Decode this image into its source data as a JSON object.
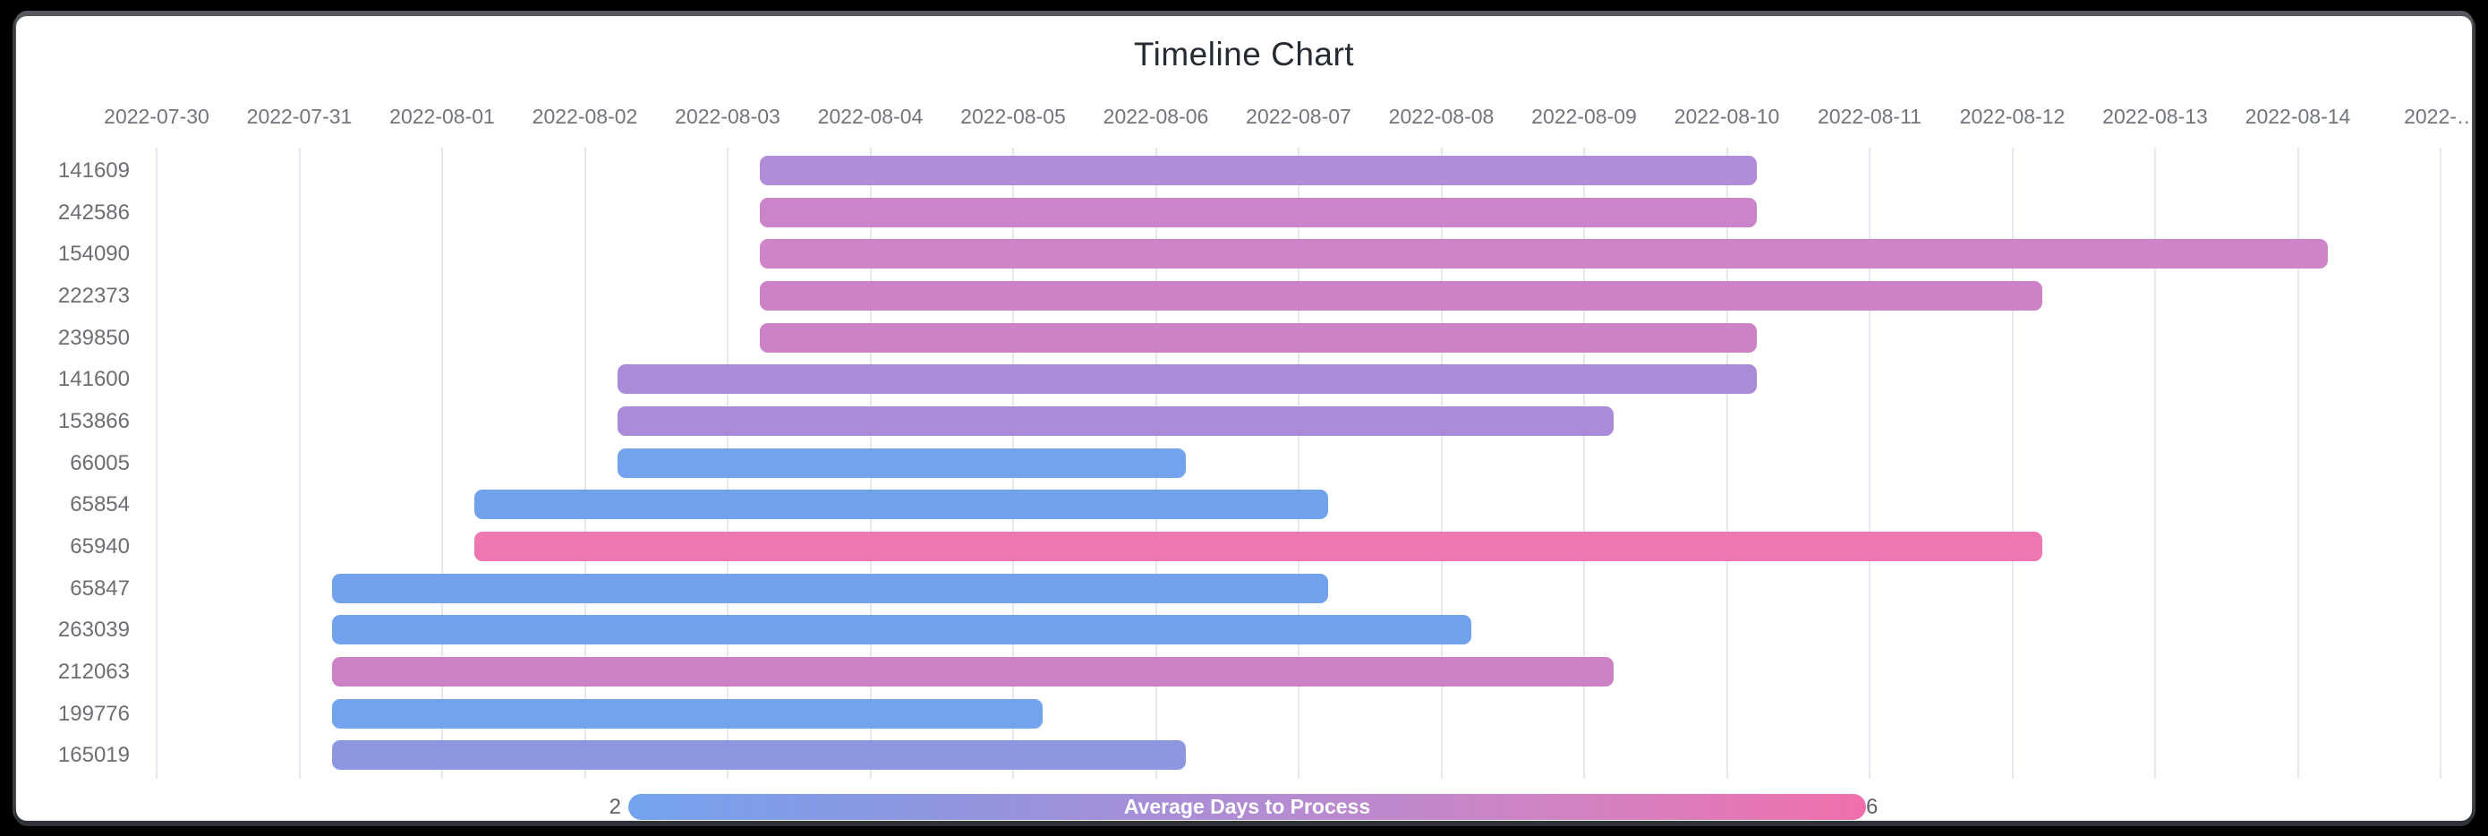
{
  "chart_data": {
    "type": "bar",
    "subtype": "timeline-gantt",
    "title": "Timeline Chart",
    "x_axis": {
      "start_date": "2022-07-30",
      "tick_labels": [
        "2022-07-30",
        "2022-07-31",
        "2022-08-01",
        "2022-08-02",
        "2022-08-03",
        "2022-08-04",
        "2022-08-05",
        "2022-08-06",
        "2022-08-07",
        "2022-08-08",
        "2022-08-09",
        "2022-08-10",
        "2022-08-11",
        "2022-08-12",
        "2022-08-13",
        "2022-08-14",
        "2022-…"
      ],
      "grid": true,
      "labels_position": "top"
    },
    "y_axis": {
      "labels": [
        "141609",
        "242586",
        "154090",
        "222373",
        "239850",
        "141600",
        "153866",
        "66005",
        "65854",
        "65940",
        "65847",
        "263039",
        "212063",
        "199776",
        "165019"
      ]
    },
    "rows": [
      {
        "id": "141609",
        "start": "2022-08-03",
        "end": "2022-08-10",
        "duration_days": 7,
        "avg_days_to_process": 4,
        "color": "#af8dd8"
      },
      {
        "id": "242586",
        "start": "2022-08-03",
        "end": "2022-08-10",
        "duration_days": 7,
        "avg_days_to_process": 5,
        "color": "#cb83c9"
      },
      {
        "id": "154090",
        "start": "2022-08-03",
        "end": "2022-08-14",
        "duration_days": 11,
        "avg_days_to_process": 5,
        "color": "#cf83c8"
      },
      {
        "id": "222373",
        "start": "2022-08-03",
        "end": "2022-08-12",
        "duration_days": 9,
        "avg_days_to_process": 5,
        "color": "#cd82c8"
      },
      {
        "id": "239850",
        "start": "2022-08-03",
        "end": "2022-08-10",
        "duration_days": 7,
        "avg_days_to_process": 5,
        "color": "#cd82c8"
      },
      {
        "id": "141600",
        "start": "2022-08-02",
        "end": "2022-08-10",
        "duration_days": 8,
        "avg_days_to_process": 4,
        "color": "#a98bd8"
      },
      {
        "id": "153866",
        "start": "2022-08-02",
        "end": "2022-08-09",
        "duration_days": 7,
        "avg_days_to_process": 4,
        "color": "#a98bd8"
      },
      {
        "id": "66005",
        "start": "2022-08-02",
        "end": "2022-08-06",
        "duration_days": 4,
        "avg_days_to_process": 2,
        "color": "#74a3ee"
      },
      {
        "id": "65854",
        "start": "2022-08-01",
        "end": "2022-08-07",
        "duration_days": 6,
        "avg_days_to_process": 2,
        "color": "#73a2ed"
      },
      {
        "id": "65940",
        "start": "2022-08-01",
        "end": "2022-08-12",
        "duration_days": 11,
        "avg_days_to_process": 6,
        "color": "#ee76b1"
      },
      {
        "id": "65847",
        "start": "2022-07-31",
        "end": "2022-08-07",
        "duration_days": 7,
        "avg_days_to_process": 2,
        "color": "#73a2ed"
      },
      {
        "id": "263039",
        "start": "2022-07-31",
        "end": "2022-08-08",
        "duration_days": 8,
        "avg_days_to_process": 2,
        "color": "#73a2ed"
      },
      {
        "id": "212063",
        "start": "2022-07-31",
        "end": "2022-08-09",
        "duration_days": 9,
        "avg_days_to_process": 5,
        "color": "#cb81c5"
      },
      {
        "id": "199776",
        "start": "2022-07-31",
        "end": "2022-08-05",
        "duration_days": 5,
        "avg_days_to_process": 2,
        "color": "#74a3ee"
      },
      {
        "id": "165019",
        "start": "2022-07-31",
        "end": "2022-08-06",
        "duration_days": 6,
        "avg_days_to_process": 3,
        "color": "#8c96e1"
      }
    ],
    "legend": {
      "label": "Average Days to Process",
      "min": 2,
      "max": 6,
      "position": "bottom",
      "gradient_stops": [
        "#74a3ee",
        "#8f95e0",
        "#b18cd3",
        "#d083c4",
        "#f06fab"
      ],
      "text_color": "#ffffff"
    },
    "colors": {
      "background": "#ffffff",
      "frame": "#000000",
      "gridline": "#e7e7f0",
      "title_text": "#262b32",
      "axis_text": "#70747b"
    }
  }
}
